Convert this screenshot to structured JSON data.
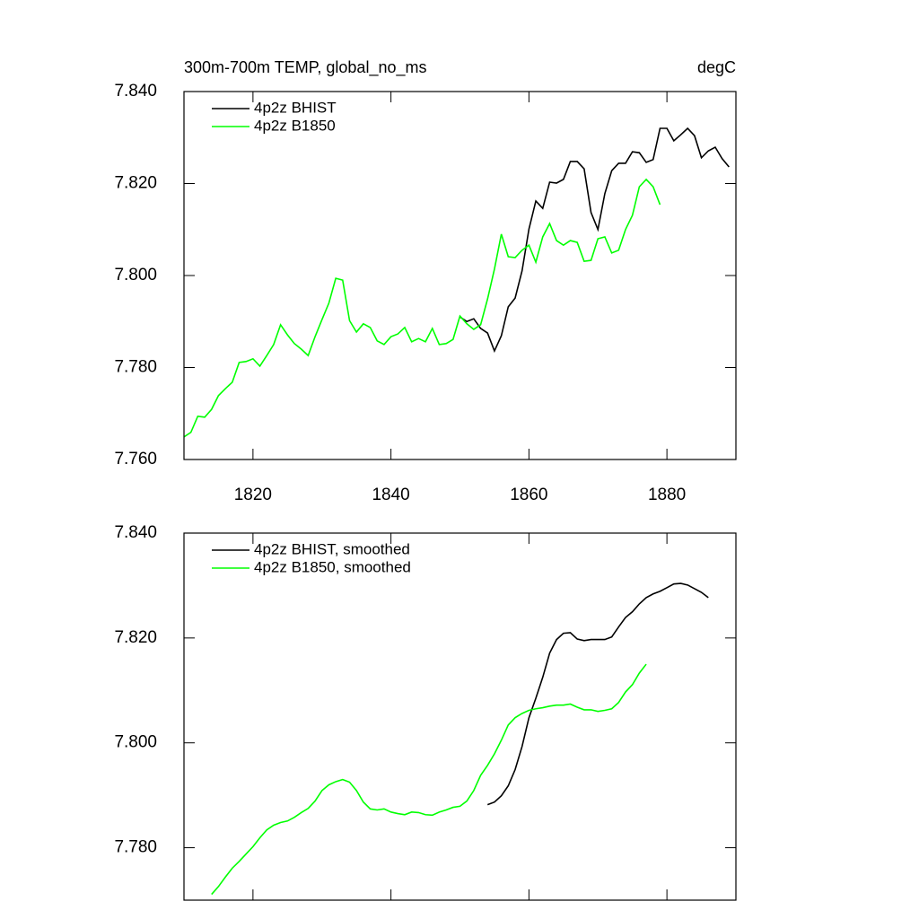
{
  "chart_data": [
    {
      "type": "line",
      "title": "300m-700m TEMP, global_no_ms",
      "units": "degC",
      "x": [
        1810,
        1811,
        1812,
        1813,
        1814,
        1815,
        1816,
        1817,
        1818,
        1819,
        1820,
        1821,
        1822,
        1823,
        1824,
        1825,
        1826,
        1827,
        1828,
        1829,
        1830,
        1831,
        1832,
        1833,
        1834,
        1835,
        1836,
        1837,
        1838,
        1839,
        1840,
        1841,
        1842,
        1843,
        1844,
        1845,
        1846,
        1847,
        1848,
        1849,
        1850,
        1851,
        1852,
        1853,
        1854,
        1855,
        1856,
        1857,
        1858,
        1859,
        1860,
        1861,
        1862,
        1863,
        1864,
        1865,
        1866,
        1867,
        1868,
        1869,
        1870,
        1871,
        1872,
        1873,
        1874,
        1875,
        1876,
        1877,
        1878,
        1879,
        1880,
        1881,
        1882,
        1883,
        1884,
        1885,
        1886,
        1887,
        1888,
        1889
      ],
      "xlim": [
        1810,
        1890
      ],
      "xticks": [
        1820,
        1840,
        1860,
        1880
      ],
      "ylim": [
        7.76,
        7.84
      ],
      "yticks": [
        {
          "value": 7.76,
          "label": "7.760"
        },
        {
          "value": 7.78,
          "label": "7.780"
        },
        {
          "value": 7.8,
          "label": "7.800"
        },
        {
          "value": 7.82,
          "label": "7.820"
        },
        {
          "value": 7.84,
          "label": "7.840"
        }
      ],
      "legend": "upper left",
      "series": [
        {
          "name": "4p2z BHIST",
          "color": "#000000",
          "values": [
            null,
            null,
            null,
            null,
            null,
            null,
            null,
            null,
            null,
            null,
            null,
            null,
            null,
            null,
            null,
            null,
            null,
            null,
            null,
            null,
            null,
            null,
            null,
            null,
            null,
            null,
            null,
            null,
            null,
            null,
            null,
            null,
            null,
            null,
            null,
            null,
            null,
            null,
            null,
            null,
            7.791,
            7.79,
            7.7906,
            7.7885,
            7.7875,
            7.7836,
            7.7869,
            7.7932,
            7.7951,
            7.801,
            7.8101,
            7.8162,
            7.8146,
            7.8203,
            7.8201,
            7.8209,
            7.8248,
            7.8248,
            7.8232,
            7.8137,
            7.81,
            7.8178,
            7.8228,
            7.8244,
            7.8244,
            7.8269,
            7.8267,
            7.8246,
            7.8252,
            7.832,
            7.832,
            7.8293,
            7.8306,
            7.832,
            7.8304,
            7.8256,
            7.8271,
            7.8279,
            7.8254,
            7.8236
          ]
        },
        {
          "name": "4p2z B1850",
          "color": "#00ff00",
          "values": [
            7.7649,
            7.7659,
            7.7694,
            7.7692,
            7.7709,
            7.7739,
            7.7754,
            7.7768,
            7.7811,
            7.7813,
            7.7819,
            7.7803,
            7.7826,
            7.785,
            7.7893,
            7.7871,
            7.7852,
            7.784,
            7.7826,
            7.7867,
            7.7904,
            7.794,
            7.7994,
            7.799,
            7.7902,
            7.7877,
            7.7895,
            7.7887,
            7.7858,
            7.785,
            7.7867,
            7.7873,
            7.7887,
            7.7856,
            7.7863,
            7.7856,
            7.7885,
            7.785,
            7.7852,
            7.7861,
            7.7912,
            7.7895,
            7.7883,
            7.7893,
            7.7949,
            7.8014,
            7.809,
            7.8041,
            7.8039,
            7.8055,
            7.8066,
            7.8029,
            7.8084,
            7.8113,
            7.8076,
            7.8066,
            7.8076,
            7.8072,
            7.8031,
            7.8033,
            7.808,
            7.8084,
            7.8049,
            7.8055,
            7.81,
            7.8131,
            7.8193,
            7.8209,
            7.8193,
            7.8154,
            null,
            null,
            null,
            null,
            null,
            null,
            null,
            null,
            null,
            null
          ]
        }
      ]
    },
    {
      "type": "line",
      "x": [
        1810,
        1811,
        1812,
        1813,
        1814,
        1815,
        1816,
        1817,
        1818,
        1819,
        1820,
        1821,
        1822,
        1823,
        1824,
        1825,
        1826,
        1827,
        1828,
        1829,
        1830,
        1831,
        1832,
        1833,
        1834,
        1835,
        1836,
        1837,
        1838,
        1839,
        1840,
        1841,
        1842,
        1843,
        1844,
        1845,
        1846,
        1847,
        1848,
        1849,
        1850,
        1851,
        1852,
        1853,
        1854,
        1855,
        1856,
        1857,
        1858,
        1859,
        1860,
        1861,
        1862,
        1863,
        1864,
        1865,
        1866,
        1867,
        1868,
        1869,
        1870,
        1871,
        1872,
        1873,
        1874,
        1875,
        1876,
        1877,
        1878,
        1879,
        1880,
        1881,
        1882,
        1883,
        1884,
        1885,
        1886,
        1887,
        1888,
        1889
      ],
      "xlim": [
        1810,
        1890
      ],
      "xticks": [
        1820,
        1840,
        1860,
        1880
      ],
      "ylim": [
        7.77,
        7.84
      ],
      "yticks": [
        {
          "value": 7.78,
          "label": "7.780"
        },
        {
          "value": 7.8,
          "label": "7.800"
        },
        {
          "value": 7.82,
          "label": "7.820"
        },
        {
          "value": 7.84,
          "label": "7.840"
        }
      ],
      "legend": "upper left",
      "series": [
        {
          "name": "4p2z BHIST, smoothed",
          "color": "#000000",
          "values": [
            null,
            null,
            null,
            null,
            null,
            null,
            null,
            null,
            null,
            null,
            null,
            null,
            null,
            null,
            null,
            null,
            null,
            null,
            null,
            null,
            null,
            null,
            null,
            null,
            null,
            null,
            null,
            null,
            null,
            null,
            null,
            null,
            null,
            null,
            null,
            null,
            null,
            null,
            null,
            null,
            null,
            null,
            null,
            null,
            7.7882,
            7.7887,
            7.7899,
            7.7918,
            7.7949,
            7.7993,
            7.8048,
            7.8085,
            7.8125,
            7.8171,
            7.8197,
            7.8209,
            7.821,
            7.8198,
            7.8195,
            7.8197,
            7.8197,
            7.8197,
            7.8202,
            7.8221,
            7.8239,
            7.825,
            7.8265,
            7.8277,
            7.8284,
            7.8289,
            7.8296,
            7.8303,
            7.8304,
            7.8301,
            7.8294,
            7.8287,
            7.8277,
            null,
            null,
            null
          ]
        },
        {
          "name": "4p2z B1850, smoothed",
          "color": "#00ff00",
          "values": [
            null,
            null,
            null,
            null,
            7.7711,
            7.7726,
            7.7744,
            7.7761,
            7.7774,
            7.7788,
            7.7802,
            7.7819,
            7.7834,
            7.7843,
            7.7848,
            7.7851,
            7.7858,
            7.7867,
            7.7875,
            7.7889,
            7.7909,
            7.792,
            7.7926,
            7.793,
            7.7925,
            7.7909,
            7.7887,
            7.7874,
            7.7872,
            7.7874,
            7.7868,
            7.7865,
            7.7863,
            7.7868,
            7.7867,
            7.7863,
            7.7862,
            7.7868,
            7.7872,
            7.7877,
            7.7879,
            7.7889,
            7.7909,
            7.7938,
            7.7957,
            7.7979,
            7.8005,
            7.8034,
            7.8048,
            7.8056,
            7.8062,
            7.8065,
            7.8067,
            7.807,
            7.8072,
            7.8072,
            7.8074,
            7.8068,
            7.8063,
            7.8063,
            7.806,
            7.8062,
            7.8065,
            7.8077,
            7.8097,
            7.8111,
            7.8133,
            7.815,
            null,
            null,
            null,
            null,
            null,
            null,
            null,
            null,
            null,
            null,
            null,
            null
          ]
        }
      ]
    }
  ]
}
